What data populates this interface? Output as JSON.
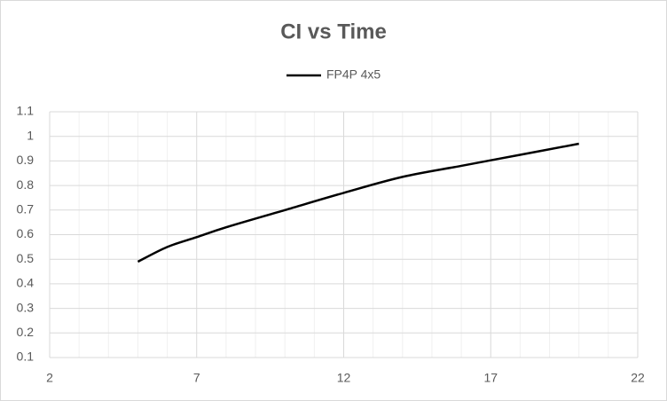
{
  "chart_data": {
    "type": "line",
    "title": "CI vs Time",
    "x": [
      5,
      6,
      7,
      8,
      10,
      12,
      14,
      16,
      18,
      20
    ],
    "series": [
      {
        "name": "FP4P 4x5",
        "color": "#000000",
        "values": [
          0.49,
          0.55,
          0.59,
          0.63,
          0.7,
          0.77,
          0.835,
          0.88,
          0.925,
          0.97
        ]
      }
    ],
    "xlim": [
      2,
      22
    ],
    "xticks": [
      2,
      7,
      12,
      17,
      22
    ],
    "ylim": [
      0.1,
      1.1
    ],
    "yticks": [
      0.1,
      0.2,
      0.3,
      0.4,
      0.5,
      0.6,
      0.7,
      0.8,
      0.9,
      1,
      1.1
    ],
    "grid": true,
    "x_minor_divisions": 5,
    "smooth": true,
    "legend": "top"
  }
}
